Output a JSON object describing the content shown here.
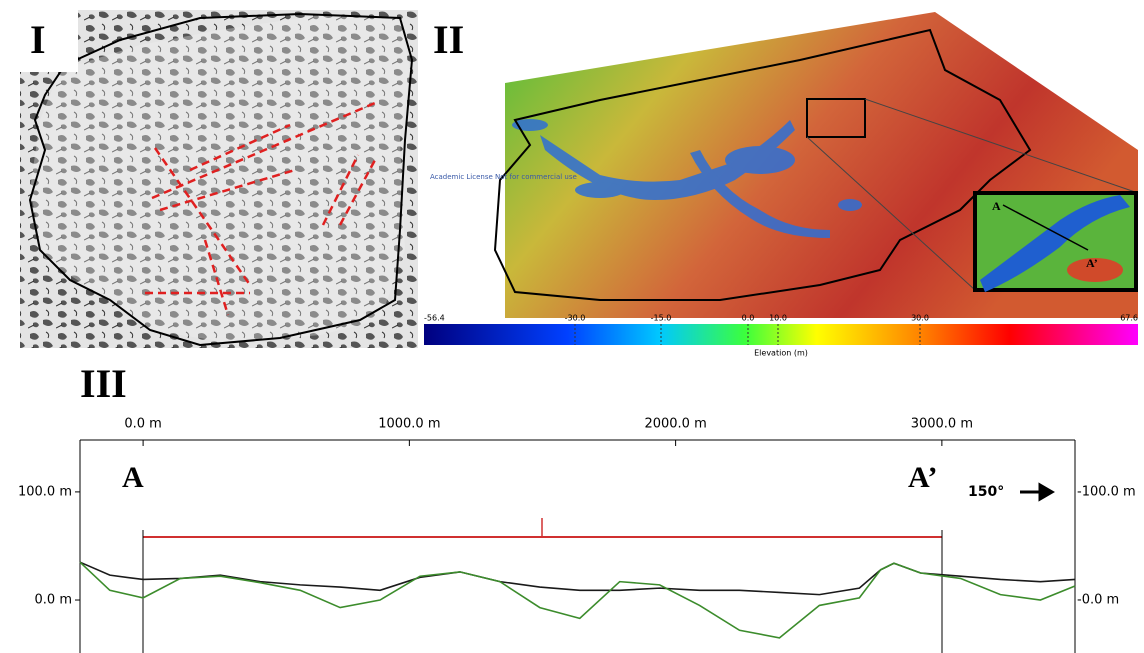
{
  "panel_labels": [
    "I",
    "II",
    "III"
  ],
  "map": {
    "watermark": "Academic License Not for commercial use",
    "inset_labels": [
      "A",
      "A’"
    ],
    "colorbar": {
      "ticks": [
        "-56.4",
        "-30.0",
        "-15.0",
        "0.0",
        "10.0",
        "30.0",
        "67.6"
      ],
      "label": "Elevation (m)"
    }
  },
  "chart_data": {
    "type": "line",
    "x": [
      -237,
      -125,
      0,
      140,
      290,
      440,
      590,
      740,
      890,
      1040,
      1190,
      1340,
      1490,
      1640,
      1790,
      1940,
      2090,
      2240,
      2390,
      2540,
      2690,
      2770,
      2820,
      2920,
      3070,
      3220,
      3370,
      3500
    ],
    "series": [
      {
        "color": "#1a1a1a",
        "values": [
          35,
          23,
          19,
          20,
          23,
          17,
          14,
          12,
          9,
          21,
          26,
          17,
          12,
          9,
          9,
          11,
          9,
          9,
          7,
          5,
          11,
          28,
          34,
          25,
          22,
          19,
          17,
          19
        ]
      },
      {
        "color": "#3c8c2c",
        "values": [
          35,
          9,
          2,
          20,
          22,
          16,
          9,
          -7,
          0,
          22,
          26,
          17,
          -7,
          -17,
          17,
          14,
          -5,
          -28,
          -35,
          -5,
          2,
          28,
          34,
          25,
          20,
          5,
          0,
          13
        ]
      }
    ],
    "xlim": [
      -237,
      3500
    ],
    "xticks": [
      {
        "value": 0,
        "label": "0.0 m"
      },
      {
        "value": 1000,
        "label": "1000.0 m"
      },
      {
        "value": 2000,
        "label": "2000.0 m"
      },
      {
        "value": 3000,
        "label": "3000.0 m"
      }
    ],
    "ylim": [
      -49,
      148
    ],
    "yticks": [
      {
        "value": 0,
        "label": "0.0 m"
      },
      {
        "value": 100,
        "label": "100.0 m"
      }
    ],
    "y2lim": [
      -49,
      148
    ],
    "y2ticks": [
      {
        "value": 0,
        "label": "-0.0 m"
      },
      {
        "value": 100,
        "label": "-100.0 m"
      }
    ],
    "annotations": [
      "A",
      "A’",
      "150°"
    ]
  }
}
